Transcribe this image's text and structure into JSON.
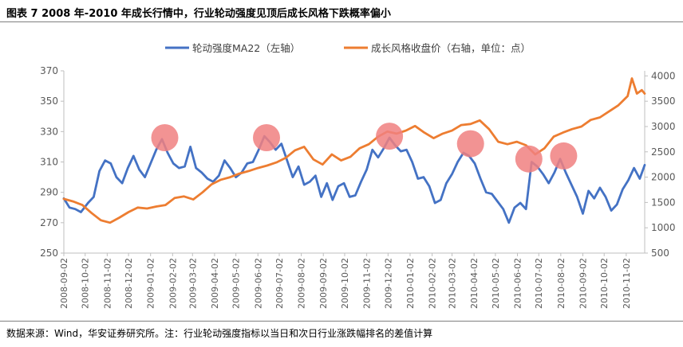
{
  "title": "图表 7  2008 年-2010 年成长行情中，行业轮动强度见顶后成长风格下跌概率偏小",
  "source": "数据来源：Wind，华安证券研究所。注：行业轮动强度指标以当日和次日行业涨跌幅排名的差值计算",
  "chart_data": {
    "type": "line",
    "x_tick_labels": [
      "2008-09-02",
      "2008-10-02",
      "2008-11-02",
      "2008-12-02",
      "2009-01-02",
      "2009-02-02",
      "2009-03-02",
      "2009-04-02",
      "2009-05-02",
      "2009-06-02",
      "2009-07-02",
      "2009-08-02",
      "2009-09-02",
      "2009-10-02",
      "2009-11-02",
      "2009-12-02",
      "2010-01-02",
      "2010-02-02",
      "2010-03-02",
      "2010-04-02",
      "2010-05-02",
      "2010-06-02",
      "2010-07-02",
      "2010-08-02",
      "2010-09-02",
      "2010-10-02",
      "2010-11-02"
    ],
    "x_range": [
      "2008-09-02",
      "2010-11-28"
    ],
    "left_axis": {
      "ticks": [
        250,
        270,
        290,
        310,
        330,
        350,
        370
      ],
      "range": [
        250,
        370
      ]
    },
    "right_axis": {
      "ticks": [
        500,
        1000,
        1500,
        2000,
        2500,
        3000,
        3500,
        4000
      ],
      "range": [
        500,
        4100
      ]
    },
    "grid": false,
    "legend_position": "top",
    "series": [
      {
        "name": "轮动强度MA22（左轴）",
        "axis": "left",
        "color": "#4472C4",
        "points": [
          [
            "2008-09-02",
            286
          ],
          [
            "2008-09-10",
            280
          ],
          [
            "2008-09-18",
            279
          ],
          [
            "2008-09-26",
            277
          ],
          [
            "2008-10-06",
            283
          ],
          [
            "2008-10-14",
            287
          ],
          [
            "2008-10-22",
            304
          ],
          [
            "2008-10-30",
            311
          ],
          [
            "2008-11-07",
            309
          ],
          [
            "2008-11-15",
            300
          ],
          [
            "2008-11-23",
            296
          ],
          [
            "2008-12-01",
            306
          ],
          [
            "2008-12-09",
            314
          ],
          [
            "2008-12-17",
            305
          ],
          [
            "2008-12-25",
            300
          ],
          [
            "2009-01-02",
            309
          ],
          [
            "2009-01-10",
            318
          ],
          [
            "2009-01-18",
            325
          ],
          [
            "2009-01-26",
            316
          ],
          [
            "2009-02-03",
            309
          ],
          [
            "2009-02-11",
            306
          ],
          [
            "2009-02-19",
            307
          ],
          [
            "2009-02-27",
            320
          ],
          [
            "2009-03-07",
            306
          ],
          [
            "2009-03-15",
            303
          ],
          [
            "2009-03-23",
            299
          ],
          [
            "2009-03-31",
            297
          ],
          [
            "2009-04-08",
            301
          ],
          [
            "2009-04-16",
            311
          ],
          [
            "2009-04-24",
            306
          ],
          [
            "2009-05-02",
            300
          ],
          [
            "2009-05-10",
            303
          ],
          [
            "2009-05-18",
            309
          ],
          [
            "2009-05-26",
            310
          ],
          [
            "2009-06-03",
            318
          ],
          [
            "2009-06-11",
            327
          ],
          [
            "2009-06-19",
            323
          ],
          [
            "2009-06-27",
            318
          ],
          [
            "2009-07-05",
            322
          ],
          [
            "2009-07-13",
            311
          ],
          [
            "2009-07-21",
            300
          ],
          [
            "2009-07-29",
            307
          ],
          [
            "2009-08-06",
            295
          ],
          [
            "2009-08-14",
            297
          ],
          [
            "2009-08-22",
            301
          ],
          [
            "2009-08-30",
            287
          ],
          [
            "2009-09-07",
            296
          ],
          [
            "2009-09-15",
            285
          ],
          [
            "2009-09-23",
            294
          ],
          [
            "2009-10-01",
            296
          ],
          [
            "2009-10-09",
            287
          ],
          [
            "2009-10-17",
            288
          ],
          [
            "2009-10-25",
            297
          ],
          [
            "2009-11-02",
            305
          ],
          [
            "2009-11-10",
            318
          ],
          [
            "2009-11-18",
            313
          ],
          [
            "2009-11-26",
            319
          ],
          [
            "2009-12-04",
            326
          ],
          [
            "2009-12-12",
            321
          ],
          [
            "2009-12-20",
            317
          ],
          [
            "2009-12-28",
            318
          ],
          [
            "2010-01-05",
            310
          ],
          [
            "2010-01-13",
            299
          ],
          [
            "2010-01-21",
            300
          ],
          [
            "2010-01-29",
            294
          ],
          [
            "2010-02-06",
            283
          ],
          [
            "2010-02-14",
            285
          ],
          [
            "2010-02-22",
            296
          ],
          [
            "2010-03-02",
            302
          ],
          [
            "2010-03-10",
            310
          ],
          [
            "2010-03-18",
            316
          ],
          [
            "2010-03-26",
            314
          ],
          [
            "2010-04-03",
            309
          ],
          [
            "2010-04-11",
            299
          ],
          [
            "2010-04-19",
            290
          ],
          [
            "2010-04-27",
            289
          ],
          [
            "2010-05-05",
            284
          ],
          [
            "2010-05-13",
            279
          ],
          [
            "2010-05-21",
            270
          ],
          [
            "2010-05-29",
            280
          ],
          [
            "2010-06-06",
            283
          ],
          [
            "2010-06-14",
            279
          ],
          [
            "2010-06-22",
            310
          ],
          [
            "2010-06-30",
            307
          ],
          [
            "2010-07-08",
            302
          ],
          [
            "2010-07-16",
            296
          ],
          [
            "2010-07-24",
            303
          ],
          [
            "2010-08-01",
            312
          ],
          [
            "2010-08-09",
            303
          ],
          [
            "2010-08-17",
            295
          ],
          [
            "2010-08-25",
            287
          ],
          [
            "2010-09-02",
            276
          ],
          [
            "2010-09-10",
            291
          ],
          [
            "2010-09-18",
            286
          ],
          [
            "2010-09-26",
            293
          ],
          [
            "2010-10-04",
            287
          ],
          [
            "2010-10-12",
            278
          ],
          [
            "2010-10-20",
            282
          ],
          [
            "2010-10-28",
            292
          ],
          [
            "2010-11-05",
            298
          ],
          [
            "2010-11-13",
            306
          ],
          [
            "2010-11-21",
            299
          ],
          [
            "2010-11-28",
            308
          ]
        ]
      },
      {
        "name": "成长风格收盘价（右轴，单位：点）",
        "axis": "right",
        "color": "#ED7D31",
        "points": [
          [
            "2008-09-02",
            1570
          ],
          [
            "2008-09-15",
            1520
          ],
          [
            "2008-09-28",
            1450
          ],
          [
            "2008-10-11",
            1290
          ],
          [
            "2008-10-24",
            1150
          ],
          [
            "2008-11-06",
            1100
          ],
          [
            "2008-11-19",
            1200
          ],
          [
            "2008-12-02",
            1310
          ],
          [
            "2008-12-15",
            1400
          ],
          [
            "2008-12-28",
            1380
          ],
          [
            "2009-01-10",
            1420
          ],
          [
            "2009-01-23",
            1450
          ],
          [
            "2009-02-05",
            1590
          ],
          [
            "2009-02-18",
            1620
          ],
          [
            "2009-03-03",
            1560
          ],
          [
            "2009-03-16",
            1700
          ],
          [
            "2009-03-29",
            1860
          ],
          [
            "2009-04-11",
            1950
          ],
          [
            "2009-04-24",
            2000
          ],
          [
            "2009-05-07",
            2070
          ],
          [
            "2009-05-20",
            2120
          ],
          [
            "2009-06-02",
            2180
          ],
          [
            "2009-06-15",
            2230
          ],
          [
            "2009-06-28",
            2290
          ],
          [
            "2009-07-11",
            2380
          ],
          [
            "2009-07-24",
            2530
          ],
          [
            "2009-08-06",
            2600
          ],
          [
            "2009-08-19",
            2350
          ],
          [
            "2009-09-01",
            2250
          ],
          [
            "2009-09-14",
            2450
          ],
          [
            "2009-09-27",
            2330
          ],
          [
            "2009-10-10",
            2400
          ],
          [
            "2009-10-23",
            2570
          ],
          [
            "2009-11-05",
            2650
          ],
          [
            "2009-11-18",
            2800
          ],
          [
            "2009-12-01",
            2900
          ],
          [
            "2009-12-14",
            2860
          ],
          [
            "2009-12-27",
            2920
          ],
          [
            "2010-01-09",
            3010
          ],
          [
            "2010-01-22",
            2880
          ],
          [
            "2010-02-04",
            2770
          ],
          [
            "2010-02-17",
            2860
          ],
          [
            "2010-03-02",
            2920
          ],
          [
            "2010-03-15",
            3030
          ],
          [
            "2010-03-28",
            3050
          ],
          [
            "2010-04-10",
            3120
          ],
          [
            "2010-04-23",
            2950
          ],
          [
            "2010-05-06",
            2700
          ],
          [
            "2010-05-19",
            2650
          ],
          [
            "2010-06-01",
            2700
          ],
          [
            "2010-06-14",
            2630
          ],
          [
            "2010-06-27",
            2450
          ],
          [
            "2010-07-10",
            2570
          ],
          [
            "2010-07-23",
            2800
          ],
          [
            "2010-08-05",
            2880
          ],
          [
            "2010-08-18",
            2950
          ],
          [
            "2010-08-31",
            3000
          ],
          [
            "2010-09-13",
            3130
          ],
          [
            "2010-09-26",
            3180
          ],
          [
            "2010-10-09",
            3300
          ],
          [
            "2010-10-22",
            3420
          ],
          [
            "2010-11-04",
            3600
          ],
          [
            "2010-11-10",
            3950
          ],
          [
            "2010-11-17",
            3650
          ],
          [
            "2010-11-24",
            3720
          ],
          [
            "2010-11-28",
            3650
          ]
        ]
      }
    ],
    "annotations": {
      "type": "circle-markers",
      "color": "#F08080",
      "points": [
        [
          "2009-01-22",
          326
        ],
        [
          "2009-06-14",
          326
        ],
        [
          "2009-12-04",
          327
        ],
        [
          "2010-03-28",
          322
        ],
        [
          "2010-06-18",
          312
        ],
        [
          "2010-08-06",
          314
        ]
      ]
    }
  }
}
